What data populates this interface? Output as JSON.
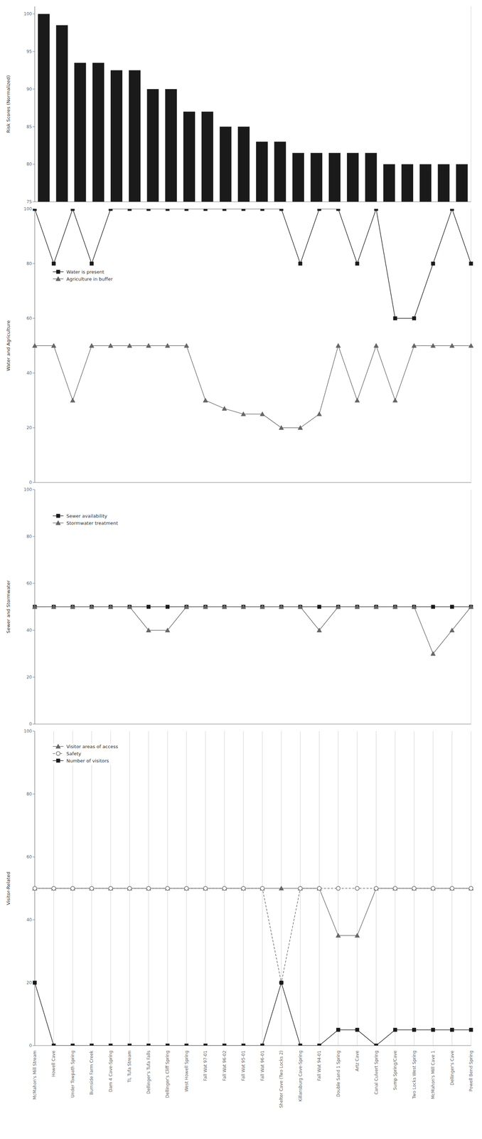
{
  "chart_data": [
    {
      "type": "bar",
      "categories": [
        "McMahon's Mill Stream",
        "Howell Cave",
        "Under Towpath Spring",
        "Burnside Farm Creek",
        "Dam 4 Cave-Spring",
        "TL Tufa Stream",
        "Dellinger's Tufa Falls",
        "Dellinger's Cliff Spring",
        "West Howell Spring",
        "Fall Wat 97-01",
        "Fall Wat 96-02",
        "Fall Wat 95-01",
        "Fall Wat 96-01",
        "Shelter Cave (Two Locks 2)",
        "Killansburg Cave-Spring",
        "Fall Wat 94-01",
        "Double Sand 1 Spring",
        "Artz Cave",
        "Canal Culvert Spring",
        "Sump Spring/Cave",
        "Two Locks West Spring",
        "McMahon's Mill Cave 1",
        "Dellinger's Cave",
        "Powell Bend Spring"
      ],
      "values": [
        100,
        98.5,
        93.5,
        93.5,
        92.5,
        92.5,
        90,
        90,
        87,
        87,
        85,
        85,
        83,
        83,
        81.5,
        81.5,
        81.5,
        81.5,
        81.5,
        80,
        80,
        80,
        80,
        80
      ],
      "color": "#1a1a1a",
      "ylabel": "Risk Scores (Normalized)",
      "ylim": [
        75,
        101
      ],
      "yticks": [
        75,
        80,
        85,
        90,
        95,
        100
      ],
      "grid": true,
      "tick_labels": "y"
    },
    {
      "type": "line",
      "categories": [
        "McMahon's Mill Stream",
        "Howell Cave",
        "Under Towpath Spring",
        "Burnside Farm Creek",
        "Dam 4 Cave-Spring",
        "TL Tufa Stream",
        "Dellinger's Tufa Falls",
        "Dellinger's Cliff Spring",
        "West Howell Spring",
        "Fall Wat 97-01",
        "Fall Wat 96-02",
        "Fall Wat 95-01",
        "Fall Wat 96-01",
        "Shelter Cave (Two Locks 2)",
        "Killansburg Cave-Spring",
        "Fall Wat 94-01",
        "Double Sand 1 Spring",
        "Artz Cave",
        "Canal Culvert Spring",
        "Sump Spring/Cave",
        "Two Locks West Spring",
        "McMahon's Mill Cave 1",
        "Dellinger's Cave",
        "Powell Bend Spring"
      ],
      "series": [
        {
          "name": "Water is present",
          "color": "#1a1a1a",
          "marker": "square",
          "line_style": "solid",
          "values": [
            100,
            80,
            100,
            80,
            100,
            100,
            100,
            100,
            100,
            100,
            100,
            100,
            100,
            100,
            80,
            100,
            100,
            80,
            100,
            60,
            60,
            80,
            100,
            80
          ]
        },
        {
          "name": "Agriculture in buffer",
          "color": "#666666",
          "marker": "triangle",
          "line_style": "solid",
          "values": [
            50,
            50,
            30,
            50,
            50,
            50,
            50,
            50,
            50,
            30,
            27,
            25,
            25,
            20,
            20,
            25,
            50,
            30,
            50,
            30,
            50,
            50,
            50,
            50
          ]
        }
      ],
      "ylabel": "Water and Agriculture",
      "ylim": [
        0,
        100
      ],
      "yticks": [
        0,
        20,
        40,
        60,
        80,
        100
      ],
      "grid": true,
      "legend": "upper left",
      "tick_labels": "y"
    },
    {
      "type": "line",
      "categories": [
        "McMahon's Mill Stream",
        "Howell Cave",
        "Under Towpath Spring",
        "Burnside Farm Creek",
        "Dam 4 Cave-Spring",
        "TL Tufa Stream",
        "Dellinger's Tufa Falls",
        "Dellinger's Cliff Spring",
        "West Howell Spring",
        "Fall Wat 97-01",
        "Fall Wat 96-02",
        "Fall Wat 95-01",
        "Fall Wat 96-01",
        "Shelter Cave (Two Locks 2)",
        "Killansburg Cave-Spring",
        "Fall Wat 94-01",
        "Double Sand 1 Spring",
        "Artz Cave",
        "Canal Culvert Spring",
        "Sump Spring/Cave",
        "Two Locks West Spring",
        "McMahon's Mill Cave 1",
        "Dellinger's Cave",
        "Powell Bend Spring"
      ],
      "series": [
        {
          "name": "Sewer availability",
          "color": "#1a1a1a",
          "marker": "square",
          "line_style": "solid",
          "values": [
            50,
            50,
            50,
            50,
            50,
            50,
            50,
            50,
            50,
            50,
            50,
            50,
            50,
            50,
            50,
            50,
            50,
            50,
            50,
            50,
            50,
            50,
            50,
            50
          ]
        },
        {
          "name": "Stormwater treatment",
          "color": "#666666",
          "marker": "triangle",
          "line_style": "solid",
          "values": [
            50,
            50,
            50,
            50,
            50,
            50,
            40,
            40,
            50,
            50,
            50,
            50,
            50,
            50,
            50,
            40,
            50,
            50,
            50,
            50,
            50,
            30,
            40,
            50
          ]
        }
      ],
      "ylabel": "Sewer and Stormwater",
      "ylim": [
        0,
        100
      ],
      "yticks": [
        0,
        20,
        40,
        60,
        80,
        100
      ],
      "grid": true,
      "legend": "upper left",
      "tick_labels": "y"
    },
    {
      "type": "line",
      "categories": [
        "McMahon's Mill Stream",
        "Howell Cave",
        "Under Towpath Spring",
        "Burnside Farm Creek",
        "Dam 4 Cave-Spring",
        "TL Tufa Stream",
        "Dellinger's Tufa Falls",
        "Dellinger's Cliff Spring",
        "West Howell Spring",
        "Fall Wat 97-01",
        "Fall Wat 96-02",
        "Fall Wat 95-01",
        "Fall Wat 96-01",
        "Shelter Cave (Two Locks 2)",
        "Killansburg Cave-Spring",
        "Fall Wat 94-01",
        "Double Sand 1 Spring",
        "Artz Cave",
        "Canal Culvert Spring",
        "Sump Spring/Cave",
        "Two Locks West Spring",
        "McMahon's Mill Cave 1",
        "Dellinger's Cave",
        "Powell Bend Spring"
      ],
      "series": [
        {
          "name": "Visitor areas of access",
          "color": "#666666",
          "marker": "triangle",
          "line_style": "solid",
          "values": [
            50,
            50,
            50,
            50,
            50,
            50,
            50,
            50,
            50,
            50,
            50,
            50,
            50,
            50,
            50,
            50,
            35,
            35,
            50,
            50,
            50,
            50,
            50,
            50
          ]
        },
        {
          "name": "Safety",
          "color": "#666666",
          "marker": "hollow_circle",
          "line_style": "dashed",
          "values": [
            50,
            50,
            50,
            50,
            50,
            50,
            50,
            50,
            50,
            50,
            50,
            50,
            50,
            20,
            50,
            50,
            50,
            50,
            50,
            50,
            50,
            50,
            50,
            50
          ]
        },
        {
          "name": "Number of visitors",
          "color": "#1a1a1a",
          "marker": "square",
          "line_style": "solid",
          "values": [
            20,
            0,
            0,
            0,
            0,
            0,
            0,
            0,
            0,
            0,
            0,
            0,
            0,
            20,
            0,
            0,
            5,
            5,
            0,
            5,
            5,
            5,
            5,
            5
          ]
        }
      ],
      "ylabel": "Visitor-Related",
      "ylim": [
        0,
        100
      ],
      "yticks": [
        0,
        20,
        40,
        60,
        80,
        100
      ],
      "grid": true,
      "legend": "upper left"
    }
  ]
}
